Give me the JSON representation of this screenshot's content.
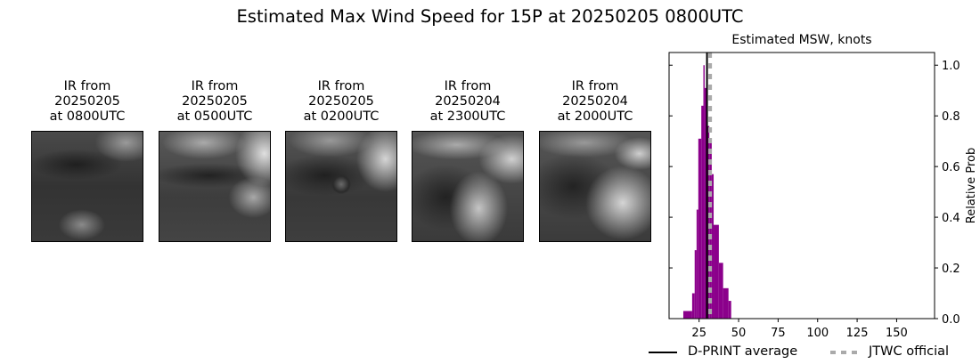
{
  "suptitle": "Estimated Max Wind Speed for 15P at 20250205 0800UTC",
  "panels": [
    {
      "label": "IR from\n20250205\nat 0800UTC",
      "date": "20250205",
      "time": "0800UTC"
    },
    {
      "label": "IR from\n20250205\nat 0500UTC",
      "date": "20250205",
      "time": "0500UTC"
    },
    {
      "label": "IR from\n20250205\nat 0200UTC",
      "date": "20250205",
      "time": "0200UTC"
    },
    {
      "label": "IR from\n20250204\nat 2300UTC",
      "date": "20250204",
      "time": "2300UTC"
    },
    {
      "label": "IR from\n20250204\nat 2000UTC",
      "date": "20250204",
      "time": "2000UTC"
    }
  ],
  "chart_data": {
    "type": "bar",
    "title": "Estimated MSW, knots",
    "xlabel": "",
    "ylabel": "Relative Prob",
    "xlim": [
      6,
      174
    ],
    "ylim": [
      0,
      1.05
    ],
    "xticks": [
      25,
      50,
      75,
      100,
      125,
      150
    ],
    "yticks": [
      0.0,
      0.2,
      0.4,
      0.6,
      0.8,
      1.0
    ],
    "ytick_labels": [
      "0.0",
      "0.2",
      "0.4",
      "0.6",
      "0.8",
      "1.0"
    ],
    "y_axis_position": "right",
    "grid": false,
    "bar_color": "#8b008b",
    "bins": [
      {
        "x0": 15.0,
        "x1": 20.6,
        "value": 0.03
      },
      {
        "x0": 20.6,
        "x1": 22.2,
        "value": 0.1
      },
      {
        "x0": 22.2,
        "x1": 23.4,
        "value": 0.27
      },
      {
        "x0": 23.4,
        "x1": 24.5,
        "value": 0.43
      },
      {
        "x0": 24.5,
        "x1": 26.4,
        "value": 0.71
      },
      {
        "x0": 26.4,
        "x1": 27.7,
        "value": 0.84
      },
      {
        "x0": 27.7,
        "x1": 28.5,
        "value": 1.0
      },
      {
        "x0": 28.5,
        "x1": 29.6,
        "value": 0.91
      },
      {
        "x0": 29.6,
        "x1": 31.5,
        "value": 0.76
      },
      {
        "x0": 31.5,
        "x1": 33.0,
        "value": 0.71
      },
      {
        "x0": 33.0,
        "x1": 34.2,
        "value": 0.57
      },
      {
        "x0": 34.2,
        "x1": 37.5,
        "value": 0.37
      },
      {
        "x0": 37.5,
        "x1": 40.2,
        "value": 0.22
      },
      {
        "x0": 40.2,
        "x1": 43.6,
        "value": 0.12
      },
      {
        "x0": 43.6,
        "x1": 45.3,
        "value": 0.07
      }
    ],
    "lines": [
      {
        "name": "D-PRINT average",
        "x": 30,
        "style": "solid",
        "color": "#000000"
      },
      {
        "name": "JTWC official",
        "x": 32,
        "style": "dashed",
        "color": "#aaaaaa"
      }
    ],
    "legend": {
      "position": "bottom",
      "entries": [
        "D-PRINT average",
        "JTWC official"
      ]
    }
  }
}
